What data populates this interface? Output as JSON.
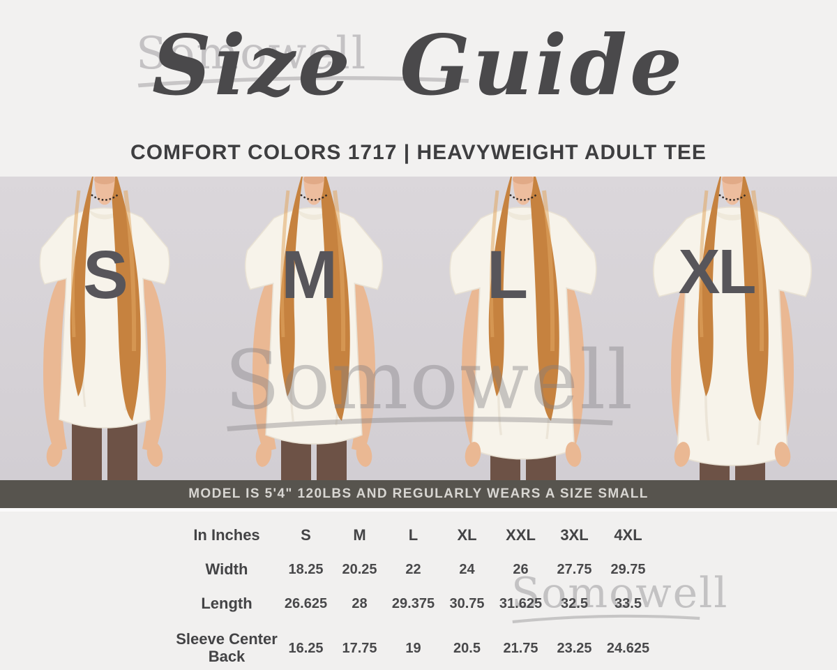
{
  "watermark": {
    "text": "Somowell"
  },
  "header": {
    "title": "Size Guide",
    "subtitle": "COMFORT COLORS 1717 | HEAVYWEIGHT ADULT TEE"
  },
  "models": {
    "items": [
      {
        "size_label": "S"
      },
      {
        "size_label": "M"
      },
      {
        "size_label": "L"
      },
      {
        "size_label": "XL"
      }
    ],
    "note": "MODEL IS 5'4\" 120LBS AND REGULARLY WEARS A SIZE SMALL"
  },
  "chart_data": {
    "type": "table",
    "title": "Size Guide",
    "subtitle": "COMFORT COLORS 1717 | HEAVYWEIGHT ADULT TEE",
    "unit_label": "In Inches",
    "columns": [
      "S",
      "M",
      "L",
      "XL",
      "XXL",
      "3XL",
      "4XL"
    ],
    "rows": [
      {
        "label": "Width",
        "values": [
          "18.25",
          "20.25",
          "22",
          "24",
          "26",
          "27.75",
          "29.75"
        ]
      },
      {
        "label": "Length",
        "values": [
          "26.625",
          "28",
          "29.375",
          "30.75",
          "31.625",
          "32.5",
          "33.5"
        ]
      },
      {
        "label": "Sleeve Center Back",
        "values": [
          "16.25",
          "17.75",
          "19",
          "20.5",
          "21.75",
          "23.25",
          "24.625"
        ]
      }
    ],
    "note": "MODEL IS 5'4\" 120LBS AND REGULARLY WEARS A SIZE SMALL"
  },
  "colors": {
    "info_bar_bg": "#57544e",
    "info_bar_text": "#d8d6d2",
    "heading_text": "#4a494b",
    "table_text": "#48484a",
    "size_letter": "#57555a",
    "photo_bg": "#d8d4d9",
    "tee": "#f7f3ea",
    "leggings": "#6d5246",
    "hair": "#c6823f",
    "watermark_gray": "#8c8c8c"
  }
}
